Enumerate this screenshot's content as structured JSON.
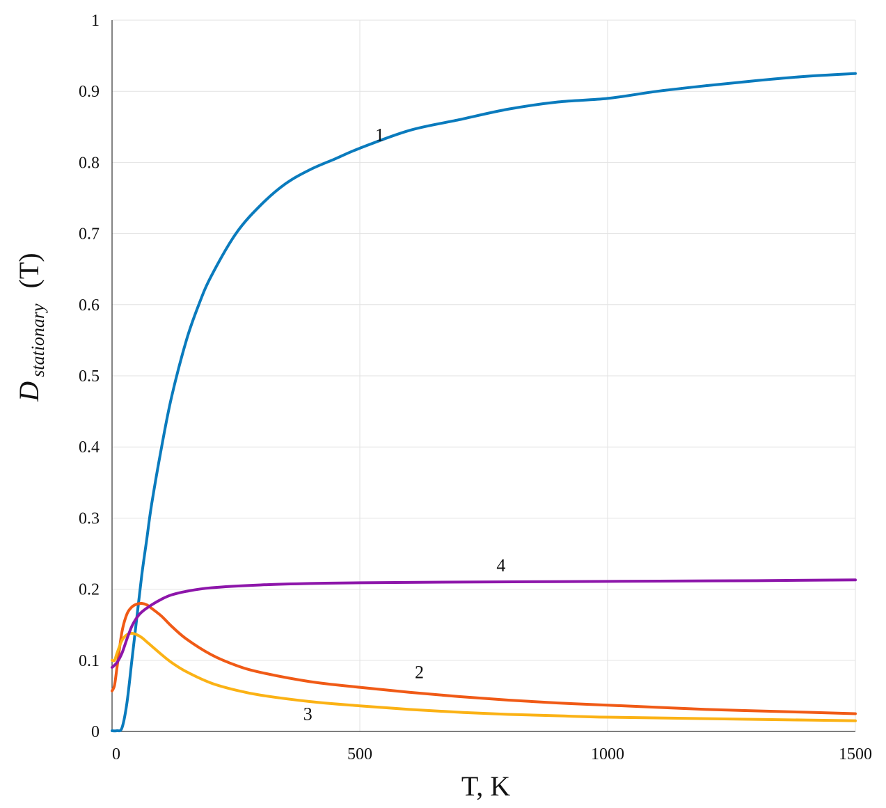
{
  "chart_data": {
    "type": "line",
    "title": "",
    "xlabel": "T, K",
    "ylabel": {
      "main": "D",
      "subscript": "stationary",
      "tail": "(T)"
    },
    "xlim": [
      0,
      1500
    ],
    "ylim": [
      0,
      1
    ],
    "grid": true,
    "legend": "none",
    "x_ticks": [
      0,
      500,
      1000,
      1500
    ],
    "y_ticks": [
      0,
      0.1,
      0.2,
      0.3,
      0.4,
      0.5,
      0.6,
      0.7,
      0.8,
      0.9,
      1
    ],
    "x_tick_labels": [
      "0",
      "500",
      "1000",
      "1500"
    ],
    "y_tick_labels": [
      "0",
      "0.1",
      "0.2",
      "0.3",
      "0.4",
      "0.5",
      "0.6",
      "0.7",
      "0.8",
      "0.9",
      "1"
    ],
    "series": [
      {
        "label": "1",
        "color": "#0a7bbd",
        "label_at": [
          540,
          0.83
        ],
        "x": [
          0,
          10,
          20,
          30,
          40,
          50,
          60,
          70,
          80,
          100,
          120,
          150,
          175,
          200,
          250,
          300,
          350,
          400,
          450,
          500,
          600,
          700,
          800,
          900,
          1000,
          1100,
          1200,
          1300,
          1400,
          1500
        ],
        "y": [
          0.001,
          0.001,
          0.005,
          0.04,
          0.1,
          0.16,
          0.22,
          0.27,
          0.32,
          0.4,
          0.47,
          0.55,
          0.6,
          0.64,
          0.7,
          0.74,
          0.77,
          0.79,
          0.805,
          0.82,
          0.845,
          0.86,
          0.875,
          0.885,
          0.89,
          0.9,
          0.908,
          0.915,
          0.921,
          0.925
        ]
      },
      {
        "label": "2",
        "color": "#f05a16",
        "label_at": [
          620,
          0.075
        ],
        "x": [
          0,
          5,
          10,
          20,
          30,
          40,
          50,
          60,
          70,
          80,
          100,
          120,
          150,
          200,
          250,
          300,
          400,
          500,
          600,
          700,
          800,
          900,
          1000,
          1200,
          1400,
          1500
        ],
        "y": [
          0.057,
          0.065,
          0.09,
          0.14,
          0.165,
          0.175,
          0.179,
          0.18,
          0.178,
          0.173,
          0.162,
          0.148,
          0.13,
          0.108,
          0.093,
          0.083,
          0.07,
          0.062,
          0.055,
          0.049,
          0.044,
          0.04,
          0.037,
          0.031,
          0.027,
          0.025
        ]
      },
      {
        "label": "3",
        "color": "#fbb215",
        "label_at": [
          395,
          0.016
        ],
        "x": [
          0,
          5,
          10,
          20,
          30,
          40,
          50,
          60,
          70,
          80,
          100,
          120,
          150,
          200,
          250,
          300,
          400,
          500,
          600,
          700,
          800,
          900,
          1000,
          1200,
          1400,
          1500
        ],
        "y": [
          0.1,
          0.1,
          0.11,
          0.128,
          0.136,
          0.138,
          0.136,
          0.132,
          0.126,
          0.12,
          0.108,
          0.097,
          0.084,
          0.068,
          0.058,
          0.051,
          0.042,
          0.036,
          0.031,
          0.027,
          0.024,
          0.022,
          0.02,
          0.018,
          0.016,
          0.015
        ]
      },
      {
        "label": "4",
        "color": "#8d16aa",
        "label_at": [
          785,
          0.225
        ],
        "x": [
          0,
          10,
          20,
          30,
          40,
          50,
          60,
          80,
          100,
          120,
          150,
          200,
          300,
          400,
          500,
          700,
          1000,
          1300,
          1500
        ],
        "y": [
          0.09,
          0.097,
          0.11,
          0.13,
          0.148,
          0.16,
          0.168,
          0.178,
          0.186,
          0.192,
          0.197,
          0.202,
          0.206,
          0.208,
          0.209,
          0.21,
          0.211,
          0.212,
          0.213
        ]
      }
    ]
  }
}
